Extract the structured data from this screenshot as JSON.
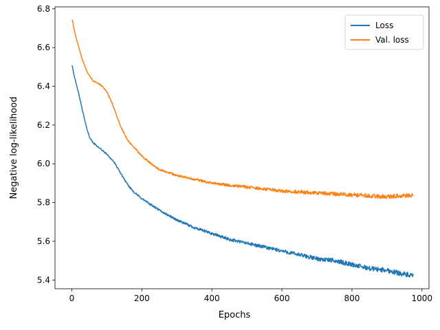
{
  "chart_data": {
    "type": "line",
    "title": "",
    "xlabel": "Epochs",
    "ylabel": "Negative log-likelihood",
    "xlim": [
      -48,
      1020
    ],
    "ylim": [
      5.355,
      6.81
    ],
    "xticks": [
      0,
      200,
      400,
      600,
      800,
      1000
    ],
    "xtick_labels": [
      "0",
      "200",
      "400",
      "600",
      "800",
      "1000"
    ],
    "yticks": [
      5.4,
      5.6,
      5.8,
      6.0,
      6.2,
      6.4,
      6.6,
      6.8
    ],
    "ytick_labels": [
      "5.4",
      "5.6",
      "5.8",
      "6.0",
      "6.2",
      "6.4",
      "6.6",
      "6.8"
    ],
    "grid": false,
    "legend_position": "top-right",
    "series": [
      {
        "name": "Loss",
        "color": "#1f77b4",
        "noise": 0.007,
        "x": [
          1,
          5,
          10,
          20,
          30,
          40,
          45,
          50,
          60,
          70,
          80,
          100,
          120,
          140,
          160,
          180,
          200,
          250,
          300,
          350,
          400,
          450,
          500,
          550,
          600,
          650,
          700,
          750,
          800,
          850,
          900,
          950,
          975
        ],
        "y": [
          6.51,
          6.47,
          6.43,
          6.36,
          6.28,
          6.2,
          6.17,
          6.14,
          6.11,
          6.095,
          6.08,
          6.05,
          6.01,
          5.95,
          5.89,
          5.85,
          5.82,
          5.76,
          5.71,
          5.67,
          5.64,
          5.61,
          5.59,
          5.57,
          5.55,
          5.53,
          5.51,
          5.5,
          5.48,
          5.46,
          5.45,
          5.43,
          5.42
        ]
      },
      {
        "name": "Val. loss",
        "color": "#ff7f0e",
        "noise": 0.006,
        "x": [
          1,
          5,
          10,
          20,
          30,
          40,
          50,
          60,
          70,
          80,
          90,
          100,
          110,
          120,
          140,
          160,
          180,
          200,
          220,
          250,
          300,
          350,
          400,
          450,
          500,
          550,
          600,
          650,
          700,
          750,
          800,
          850,
          900,
          950,
          975
        ],
        "y": [
          6.745,
          6.71,
          6.665,
          6.6,
          6.54,
          6.49,
          6.455,
          6.43,
          6.42,
          6.41,
          6.395,
          6.37,
          6.335,
          6.29,
          6.19,
          6.12,
          6.08,
          6.04,
          6.01,
          5.97,
          5.94,
          5.92,
          5.9,
          5.89,
          5.88,
          5.87,
          5.86,
          5.855,
          5.85,
          5.845,
          5.84,
          5.835,
          5.83,
          5.835,
          5.84
        ]
      }
    ]
  }
}
